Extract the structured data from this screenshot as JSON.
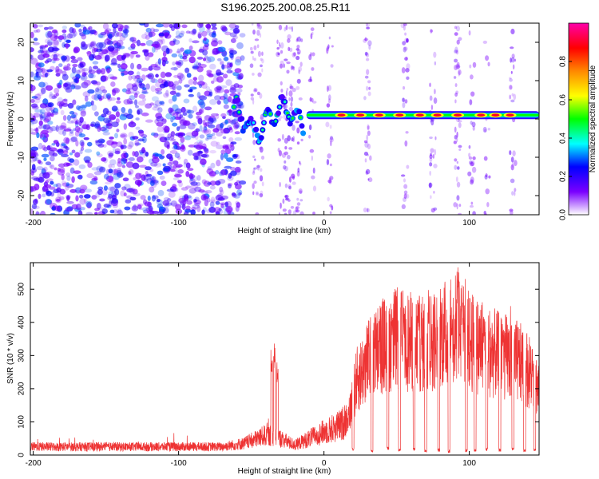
{
  "title": "S196.2025.200.08.25.R11",
  "chart_data": [
    {
      "type": "heatmap",
      "xlabel": "Height of straight line (km)",
      "ylabel": "Frequency (Hz)",
      "xlim": [
        -202,
        148
      ],
      "ylim": [
        -25,
        25
      ],
      "xticks": [
        "-200",
        "-100",
        "0",
        "100"
      ],
      "xtick_values": [
        -200,
        -100,
        0,
        100
      ],
      "yticks": [
        "-20",
        "-10",
        "0",
        "10",
        "20"
      ],
      "ytick_values": [
        -20,
        -10,
        0,
        10,
        20
      ],
      "colorbar": {
        "label": "Normalized spectral amplitude",
        "range": [
          0,
          1
        ],
        "ticks": [
          "0.0",
          "0.2",
          "0.4",
          "0.6",
          "0.8"
        ],
        "tick_values": [
          0.0,
          0.2,
          0.4,
          0.6,
          0.8
        ],
        "colors": [
          "#ffffff",
          "#7a00ff",
          "#0000ff",
          "#00ffff",
          "#00ff00",
          "#ffff00",
          "#ff8800",
          "#ff0000",
          "#ff00aa"
        ]
      },
      "features": {
        "noise_region_km": [
          -202,
          -62
        ],
        "transition_region_km": [
          -62,
          -12
        ],
        "signal_band_km": [
          -12,
          148
        ],
        "signal_frequency_hz": 1,
        "peak_amplitude": 0.9,
        "high_amplitude_centers_km": [
          12,
          25,
          38,
          52,
          66,
          78,
          92,
          108,
          118,
          128
        ]
      },
      "grid": false
    },
    {
      "type": "line",
      "xlabel": "Height of straight line (km)",
      "ylabel": "SNR (10 * v/v)",
      "xlim": [
        -202,
        148
      ],
      "ylim": [
        0,
        580
      ],
      "xticks": [
        "-200",
        "-100",
        "0",
        "100"
      ],
      "xtick_values": [
        -200,
        -100,
        0,
        100
      ],
      "yticks": [
        "0",
        "100",
        "200",
        "300",
        "400",
        "500"
      ],
      "ytick_values": [
        0,
        100,
        200,
        300,
        400,
        500
      ],
      "series": [
        {
          "color": "#ee3333",
          "baseline_points": [
            [
              -202,
              25
            ],
            [
              -70,
              25
            ],
            [
              -55,
              35
            ],
            [
              -40,
              60
            ],
            [
              -30,
              50
            ],
            [
              -20,
              30
            ],
            [
              -10,
              50
            ],
            [
              0,
              70
            ],
            [
              12,
              90
            ],
            [
              18,
              130
            ],
            [
              22,
              220
            ],
            [
              30,
              280
            ],
            [
              40,
              330
            ],
            [
              50,
              350
            ],
            [
              60,
              340
            ],
            [
              70,
              330
            ],
            [
              80,
              360
            ],
            [
              90,
              380
            ],
            [
              95,
              400
            ],
            [
              100,
              340
            ],
            [
              110,
              320
            ],
            [
              120,
              300
            ],
            [
              130,
              290
            ],
            [
              140,
              260
            ],
            [
              148,
              200
            ]
          ],
          "spikes": [
            [
              -34,
              350
            ],
            [
              -36,
              320
            ],
            [
              -32,
              280
            ],
            [
              33,
              470
            ],
            [
              47,
              480
            ],
            [
              55,
              450
            ],
            [
              65,
              490
            ],
            [
              72,
              510
            ],
            [
              92,
              580
            ],
            [
              95,
              520
            ],
            [
              88,
              460
            ],
            [
              110,
              420
            ],
            [
              123,
              400
            ]
          ],
          "dropouts": [
            [
              20,
              12
            ],
            [
              33,
              8
            ],
            [
              44,
              15
            ],
            [
              52,
              10
            ],
            [
              62,
              12
            ],
            [
              70,
              8
            ],
            [
              79,
              10
            ],
            [
              86,
              6
            ],
            [
              98,
              8
            ],
            [
              104,
              10
            ],
            [
              112,
              12
            ],
            [
              121,
              10
            ],
            [
              130,
              14
            ],
            [
              138,
              10
            ],
            [
              145,
              12
            ]
          ]
        }
      ],
      "grid": false
    }
  ]
}
